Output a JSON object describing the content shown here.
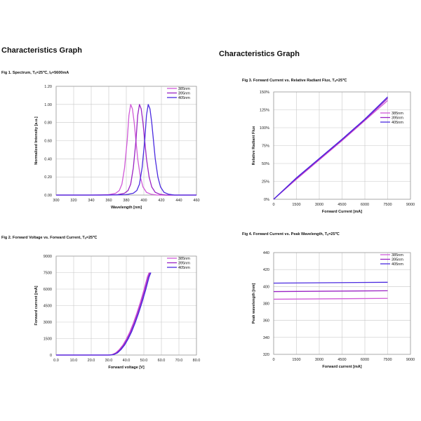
{
  "page": {
    "heading_left": "Characteristics Graph",
    "heading_right": "Characteristics Graph"
  },
  "series_colors": {
    "385nm": "#d05ad8",
    "395nm": "#9b24c4",
    "405nm": "#4b2be0"
  },
  "chart_data": [
    {
      "id": "fig1",
      "type": "line",
      "title": "Fig 1. Spectrum, Tₐ=25℃, Iₑ=5600mA",
      "xlabel": "Wavelength [nm]",
      "ylabel": "Normalized Intensity [a.u.]",
      "xlim": [
        300,
        460
      ],
      "ylim": [
        0,
        1.2
      ],
      "xticks": [
        "300",
        "320",
        "340",
        "360",
        "380",
        "400",
        "420",
        "440",
        "460"
      ],
      "yticks": [
        "0.00",
        "0.20",
        "0.40",
        "0.60",
        "0.80",
        "1.00",
        "1.20"
      ],
      "legend": [
        "385nm",
        "395nm",
        "405nm"
      ],
      "series": [
        {
          "name": "385nm",
          "x": [
            300,
            340,
            360,
            368,
            372,
            375,
            378,
            381,
            383,
            385,
            387,
            389,
            391,
            393,
            396,
            399,
            403,
            408,
            415,
            430,
            460
          ],
          "y": [
            0,
            0,
            0.005,
            0.02,
            0.05,
            0.12,
            0.3,
            0.6,
            0.88,
            1.0,
            0.95,
            0.8,
            0.6,
            0.4,
            0.2,
            0.09,
            0.03,
            0.01,
            0,
            0,
            0
          ]
        },
        {
          "name": "395nm",
          "x": [
            300,
            350,
            370,
            378,
            382,
            385,
            388,
            391,
            393,
            395,
            397,
            399,
            401,
            403,
            406,
            409,
            413,
            418,
            425,
            440,
            460
          ],
          "y": [
            0,
            0,
            0.005,
            0.02,
            0.05,
            0.12,
            0.3,
            0.6,
            0.88,
            1.0,
            0.95,
            0.8,
            0.6,
            0.4,
            0.2,
            0.09,
            0.03,
            0.01,
            0,
            0,
            0
          ]
        },
        {
          "name": "405nm",
          "x": [
            300,
            360,
            380,
            388,
            392,
            395,
            398,
            401,
            403,
            405,
            407,
            409,
            411,
            413,
            416,
            419,
            423,
            428,
            435,
            450,
            460
          ],
          "y": [
            0,
            0,
            0.005,
            0.02,
            0.05,
            0.12,
            0.3,
            0.6,
            0.88,
            1.0,
            0.95,
            0.8,
            0.6,
            0.4,
            0.2,
            0.09,
            0.03,
            0.01,
            0,
            0,
            0
          ]
        }
      ]
    },
    {
      "id": "fig2",
      "type": "line",
      "title": "Fig 2. Forward Voltage vs. Forward Current, Tₐ=25℃",
      "xlabel": "Forward voltage [V]",
      "ylabel": "Forward current [mA]",
      "xlim": [
        0,
        80
      ],
      "ylim": [
        0,
        9000
      ],
      "xticks": [
        "0.0",
        "10.0",
        "20.0",
        "30.0",
        "40.0",
        "50.0",
        "60.0",
        "70.0",
        "80.0"
      ],
      "yticks": [
        "0",
        "1500",
        "3000",
        "4500",
        "6000",
        "7500",
        "9000"
      ],
      "legend": [
        "385nm",
        "395nm",
        "405nm"
      ],
      "series": [
        {
          "name": "385nm",
          "x": [
            0,
            30,
            32,
            34,
            36,
            38,
            40,
            42,
            44,
            46,
            48,
            50,
            52,
            53
          ],
          "y": [
            0,
            0,
            50,
            200,
            500,
            900,
            1450,
            2100,
            2900,
            3800,
            4800,
            5900,
            7100,
            7500
          ]
        },
        {
          "name": "395nm",
          "x": [
            0,
            30.5,
            32.5,
            34.5,
            36.5,
            38.5,
            40.5,
            42.5,
            44.5,
            46.5,
            48.5,
            50.5,
            52.5,
            53.5
          ],
          "y": [
            0,
            0,
            50,
            200,
            500,
            900,
            1450,
            2100,
            2900,
            3800,
            4800,
            5900,
            7100,
            7500
          ]
        },
        {
          "name": "405nm",
          "x": [
            0,
            31,
            33,
            35,
            37,
            39,
            41,
            43,
            45,
            47,
            49,
            51,
            53,
            54
          ],
          "y": [
            0,
            0,
            50,
            200,
            500,
            900,
            1450,
            2100,
            2900,
            3800,
            4800,
            5900,
            7100,
            7500
          ]
        }
      ]
    },
    {
      "id": "fig3",
      "type": "line",
      "title": "Fig 3. Forward Current vs. Relative Radiant Flux, Tₐ=25℃",
      "xlabel": "Forward Current [mA]",
      "ylabel": "Relative Radiant Flux",
      "xlim": [
        0,
        9000
      ],
      "ylim": [
        0,
        150
      ],
      "xticks": [
        "0",
        "1500",
        "3000",
        "4500",
        "6000",
        "7500",
        "9000"
      ],
      "yticks": [
        "0%",
        "25%",
        "50%",
        "75%",
        "100%",
        "125%",
        "150%"
      ],
      "legend": [
        "385nm",
        "395nm",
        "405nm"
      ],
      "series": [
        {
          "name": "385nm",
          "x": [
            0,
            1500,
            3000,
            4500,
            6000,
            7500
          ],
          "y": [
            0,
            28,
            55,
            82,
            110,
            138
          ]
        },
        {
          "name": "395nm",
          "x": [
            0,
            1500,
            3000,
            4500,
            6000,
            7500
          ],
          "y": [
            0,
            29,
            56,
            83,
            111,
            141
          ]
        },
        {
          "name": "405nm",
          "x": [
            0,
            1500,
            3000,
            4500,
            6000,
            7500
          ],
          "y": [
            0,
            30,
            57,
            84,
            112,
            143
          ]
        }
      ]
    },
    {
      "id": "fig4",
      "type": "line",
      "title": "Fig 4. Forward Current vs. Peak Wavelength, Tₐ=25℃",
      "xlabel": "Forward current [mA]",
      "ylabel": "Peak wavelength [nm]",
      "xlim": [
        0,
        9000
      ],
      "ylim": [
        320,
        440
      ],
      "xticks": [
        "0",
        "1500",
        "3000",
        "4500",
        "6000",
        "7500",
        "9000"
      ],
      "yticks": [
        "320",
        "340",
        "360",
        "380",
        "400",
        "420",
        "440"
      ],
      "legend": [
        "385nm",
        "395nm",
        "405nm"
      ],
      "series": [
        {
          "name": "385nm",
          "x": [
            0,
            7500
          ],
          "y": [
            385,
            386
          ]
        },
        {
          "name": "395nm",
          "x": [
            0,
            7500
          ],
          "y": [
            394,
            395
          ]
        },
        {
          "name": "405nm",
          "x": [
            0,
            7500
          ],
          "y": [
            404,
            405
          ]
        }
      ]
    }
  ]
}
